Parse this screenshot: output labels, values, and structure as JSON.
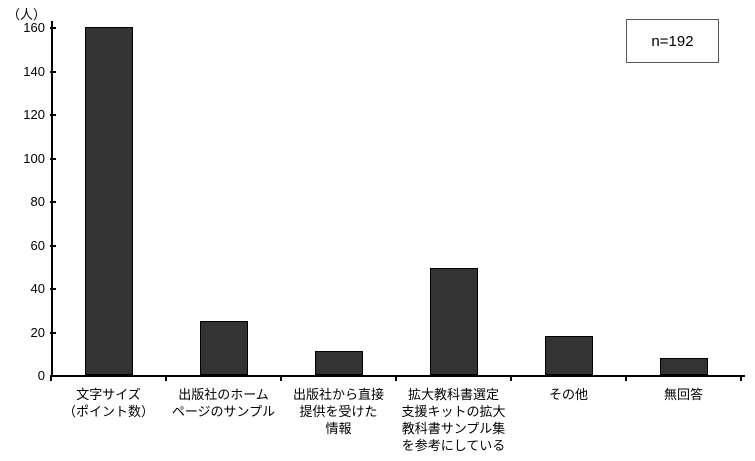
{
  "chart_data": {
    "type": "bar",
    "title": "",
    "unit_label": "（人）",
    "annotation": "n=192",
    "categories": [
      [
        "文字サイズ",
        "（ポイント数）"
      ],
      [
        "出版社のホーム",
        "ページのサンプル"
      ],
      [
        "出版社から直接",
        "提供を受けた",
        "情報"
      ],
      [
        "拡大教科書選定",
        "支援キットの拡大",
        "教科書サンプル集",
        "を参考にしている"
      ],
      [
        "その他"
      ],
      [
        "無回答"
      ]
    ],
    "values": [
      160,
      25,
      11,
      49,
      18,
      8
    ],
    "ylim": [
      0,
      160
    ],
    "yticks": [
      0,
      20,
      40,
      60,
      80,
      100,
      120,
      140,
      160
    ],
    "ylabel": "",
    "xlabel": "",
    "grid": false,
    "legend_position": "none",
    "bar_color": "#333333",
    "axis_color": "#000000"
  }
}
